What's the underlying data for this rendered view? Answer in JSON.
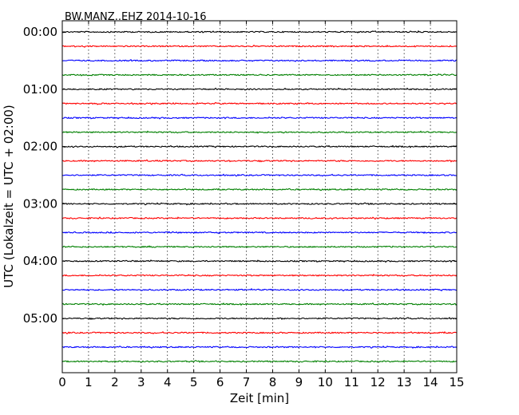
{
  "chart_data": {
    "type": "line",
    "title": "BW.MANZ..EHZ 2014-10-16",
    "xlabel": "Zeit  [min]",
    "ylabel": "UTC (Lokalzeit = UTC + 02:00)",
    "xlim": [
      0,
      15
    ],
    "x_ticks": [
      "0",
      "1",
      "2",
      "3",
      "4",
      "5",
      "6",
      "7",
      "8",
      "9",
      "10",
      "11",
      "12",
      "13",
      "14",
      "15"
    ],
    "y_ticks": [
      "00:00",
      "01:00",
      "02:00",
      "03:00",
      "04:00",
      "05:00"
    ],
    "grid": "vertical dotted",
    "traces_per_hour": 4,
    "trace_minutes": 15,
    "colors": [
      "#000000",
      "#ff0000",
      "#0000ff",
      "#008000"
    ],
    "traces": [
      {
        "start": "00:00",
        "color": "#000000"
      },
      {
        "start": "00:15",
        "color": "#ff0000"
      },
      {
        "start": "00:30",
        "color": "#0000ff"
      },
      {
        "start": "00:45",
        "color": "#008000"
      },
      {
        "start": "01:00",
        "color": "#000000"
      },
      {
        "start": "01:15",
        "color": "#ff0000"
      },
      {
        "start": "01:30",
        "color": "#0000ff"
      },
      {
        "start": "01:45",
        "color": "#008000"
      },
      {
        "start": "02:00",
        "color": "#000000"
      },
      {
        "start": "02:15",
        "color": "#ff0000"
      },
      {
        "start": "02:30",
        "color": "#0000ff"
      },
      {
        "start": "02:45",
        "color": "#008000"
      },
      {
        "start": "03:00",
        "color": "#000000"
      },
      {
        "start": "03:15",
        "color": "#ff0000"
      },
      {
        "start": "03:30",
        "color": "#0000ff"
      },
      {
        "start": "03:45",
        "color": "#008000"
      },
      {
        "start": "04:00",
        "color": "#000000"
      },
      {
        "start": "04:15",
        "color": "#ff0000"
      },
      {
        "start": "04:30",
        "color": "#0000ff"
      },
      {
        "start": "04:45",
        "color": "#008000"
      },
      {
        "start": "05:00",
        "color": "#000000"
      },
      {
        "start": "05:15",
        "color": "#ff0000"
      },
      {
        "start": "05:30",
        "color": "#0000ff"
      },
      {
        "start": "05:45",
        "color": "#008000"
      }
    ]
  }
}
